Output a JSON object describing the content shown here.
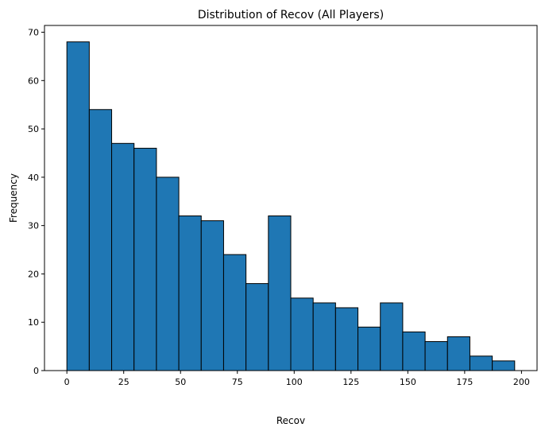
{
  "chart_data": {
    "type": "bar",
    "subtype": "histogram",
    "title": "Distribution of Recov (All Players)",
    "xlabel": "Recov",
    "ylabel": "Frequency",
    "bin_edges": [
      0,
      9.85,
      19.7,
      29.55,
      39.4,
      49.25,
      59.1,
      68.95,
      78.8,
      88.65,
      98.5,
      108.35,
      118.2,
      128.05,
      137.9,
      147.75,
      157.6,
      167.45,
      177.3,
      187.15,
      197
    ],
    "values": [
      68,
      54,
      47,
      46,
      40,
      32,
      31,
      24,
      18,
      32,
      15,
      14,
      13,
      9,
      14,
      8,
      6,
      7,
      3,
      2
    ],
    "xlim": [
      -9.85,
      206.85
    ],
    "ylim": [
      0,
      71.4
    ],
    "xticks": [
      0,
      25,
      50,
      75,
      100,
      125,
      150,
      175,
      200
    ],
    "yticks": [
      0,
      10,
      20,
      30,
      40,
      50,
      60,
      70
    ],
    "grid": false,
    "bar_color": "#1f77b4",
    "edge_color": "#000000"
  }
}
